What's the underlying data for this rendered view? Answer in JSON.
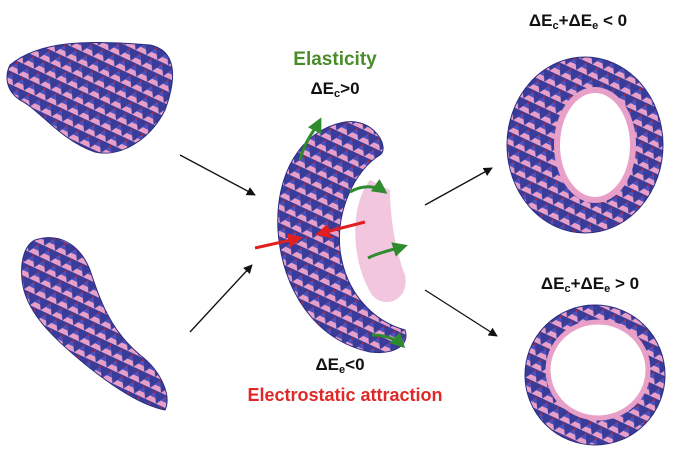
{
  "labels": {
    "elasticity": "Elasticity",
    "elastic_energy": [
      "ΔE",
      "c",
      ">0"
    ],
    "electrostatic_energy": [
      "ΔE",
      "e",
      "<0"
    ],
    "electrostatic": "Electrostatic attraction",
    "closed_tube": [
      "ΔE",
      "c",
      "+ΔE",
      "e",
      " < 0"
    ],
    "open_ring": [
      "ΔE",
      "c",
      "+ΔE",
      "e",
      " > 0"
    ]
  }
}
